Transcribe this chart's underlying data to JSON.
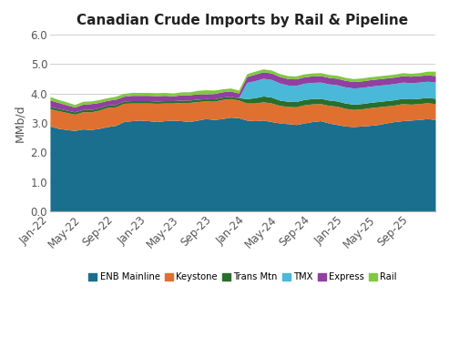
{
  "title": "Canadian Crude Imports by Rail & Pipeline",
  "ylabel": "MMb/d",
  "ylim": [
    0.0,
    6.0
  ],
  "yticks": [
    0.0,
    1.0,
    2.0,
    3.0,
    4.0,
    5.0,
    6.0
  ],
  "colors": {
    "ENB Mainline": "#1a6e8e",
    "Keystone": "#e07030",
    "Trans Mtn": "#2a6e2a",
    "TMX": "#4ab8d8",
    "Express": "#9040a0",
    "Rail": "#80c840"
  },
  "x_labels": [
    "Jan-22",
    "May-22",
    "Sep-22",
    "Jan-23",
    "May-23",
    "Sep-23",
    "Jan-24",
    "May-24",
    "Sep-24",
    "Jan-25",
    "May-25",
    "Sep-25"
  ],
  "n_points": 48,
  "ENB Mainline": [
    2.9,
    2.82,
    2.78,
    2.75,
    2.8,
    2.78,
    2.82,
    2.88,
    2.92,
    3.05,
    3.08,
    3.1,
    3.08,
    3.05,
    3.08,
    3.1,
    3.08,
    3.05,
    3.1,
    3.15,
    3.12,
    3.15,
    3.2,
    3.18,
    3.1,
    3.08,
    3.1,
    3.05,
    3.0,
    2.98,
    2.95,
    3.0,
    3.05,
    3.08,
    3.0,
    2.95,
    2.9,
    2.88,
    2.9,
    2.92,
    2.95,
    3.0,
    3.05,
    3.08,
    3.1,
    3.12,
    3.15,
    3.12
  ],
  "Keystone": [
    0.58,
    0.6,
    0.58,
    0.55,
    0.58,
    0.6,
    0.62,
    0.65,
    0.63,
    0.62,
    0.6,
    0.58,
    0.6,
    0.62,
    0.6,
    0.58,
    0.62,
    0.65,
    0.63,
    0.6,
    0.62,
    0.65,
    0.63,
    0.6,
    0.58,
    0.6,
    0.62,
    0.63,
    0.6,
    0.58,
    0.6,
    0.62,
    0.6,
    0.58,
    0.6,
    0.62,
    0.6,
    0.58,
    0.58,
    0.6,
    0.6,
    0.58,
    0.56,
    0.58,
    0.54,
    0.54,
    0.54,
    0.54
  ],
  "Trans Mtn": [
    0.08,
    0.08,
    0.08,
    0.08,
    0.08,
    0.08,
    0.08,
    0.08,
    0.08,
    0.08,
    0.08,
    0.08,
    0.08,
    0.08,
    0.08,
    0.08,
    0.08,
    0.08,
    0.08,
    0.08,
    0.08,
    0.08,
    0.08,
    0.08,
    0.15,
    0.18,
    0.2,
    0.2,
    0.18,
    0.18,
    0.18,
    0.18,
    0.18,
    0.18,
    0.18,
    0.18,
    0.18,
    0.18,
    0.18,
    0.18,
    0.18,
    0.18,
    0.18,
    0.18,
    0.18,
    0.18,
    0.18,
    0.18
  ],
  "TMX": [
    0.0,
    0.0,
    0.0,
    0.0,
    0.0,
    0.0,
    0.0,
    0.0,
    0.0,
    0.0,
    0.0,
    0.0,
    0.0,
    0.0,
    0.0,
    0.0,
    0.0,
    0.0,
    0.0,
    0.0,
    0.0,
    0.0,
    0.0,
    0.0,
    0.55,
    0.58,
    0.6,
    0.6,
    0.58,
    0.55,
    0.55,
    0.55,
    0.55,
    0.55,
    0.55,
    0.55,
    0.55,
    0.55,
    0.55,
    0.55,
    0.55,
    0.55,
    0.55,
    0.55,
    0.55,
    0.55,
    0.55,
    0.55
  ],
  "Express": [
    0.22,
    0.2,
    0.18,
    0.16,
    0.18,
    0.2,
    0.18,
    0.16,
    0.18,
    0.16,
    0.18,
    0.18,
    0.18,
    0.18,
    0.18,
    0.16,
    0.18,
    0.18,
    0.18,
    0.16,
    0.18,
    0.18,
    0.18,
    0.16,
    0.2,
    0.22,
    0.22,
    0.22,
    0.22,
    0.22,
    0.22,
    0.22,
    0.22,
    0.22,
    0.22,
    0.22,
    0.22,
    0.22,
    0.22,
    0.22,
    0.22,
    0.22,
    0.22,
    0.22,
    0.22,
    0.22,
    0.22,
    0.22
  ],
  "Rail": [
    0.12,
    0.1,
    0.1,
    0.09,
    0.1,
    0.09,
    0.1,
    0.09,
    0.1,
    0.1,
    0.1,
    0.1,
    0.1,
    0.1,
    0.1,
    0.1,
    0.1,
    0.1,
    0.12,
    0.14,
    0.12,
    0.1,
    0.1,
    0.1,
    0.1,
    0.1,
    0.1,
    0.1,
    0.1,
    0.1,
    0.1,
    0.1,
    0.1,
    0.1,
    0.1,
    0.1,
    0.1,
    0.1,
    0.1,
    0.1,
    0.1,
    0.1,
    0.1,
    0.1,
    0.1,
    0.1,
    0.12,
    0.15
  ],
  "background_color": "#ffffff",
  "grid_color": "#d0d0d0",
  "title_fontsize": 11,
  "label_fontsize": 9,
  "tick_fontsize": 8.5
}
